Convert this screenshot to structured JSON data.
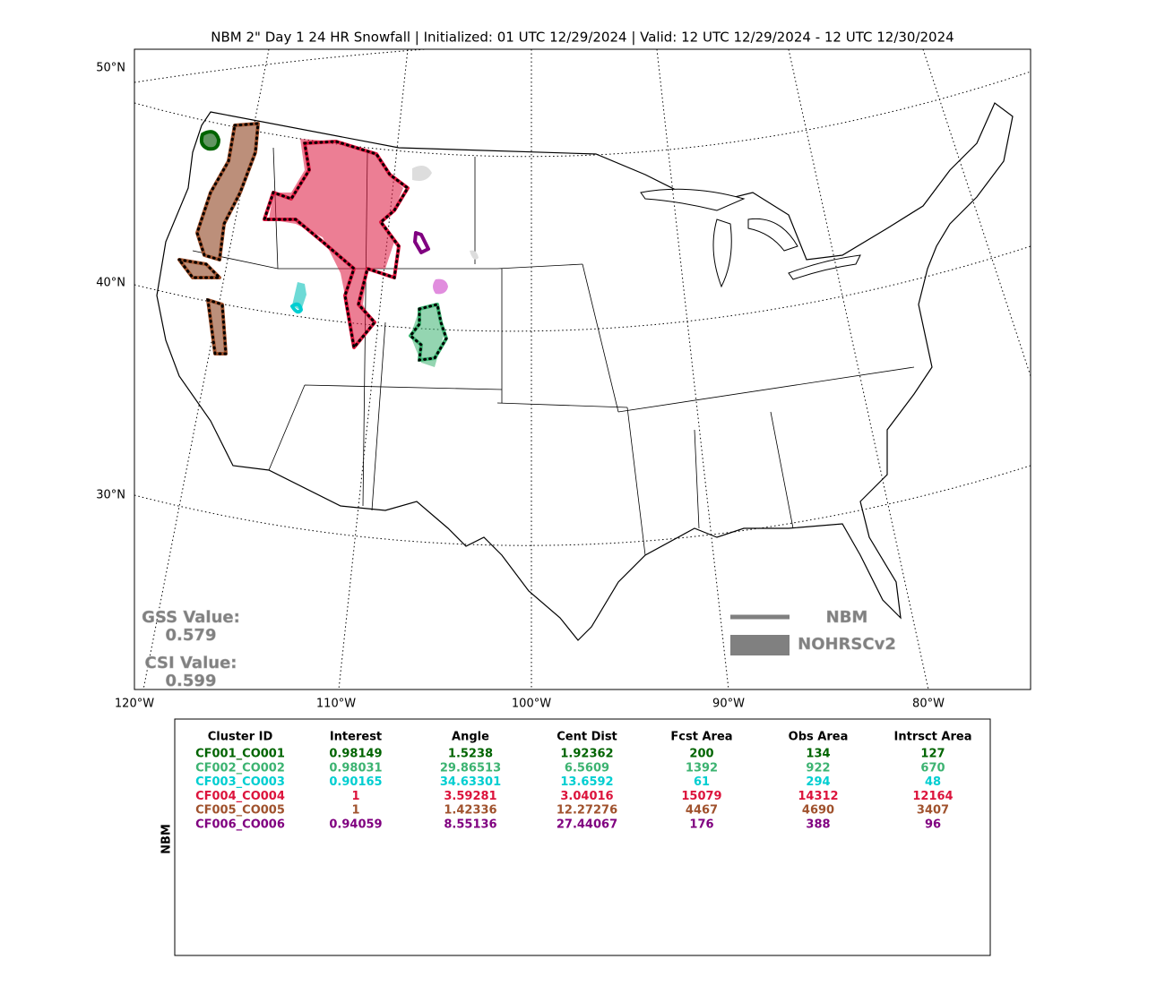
{
  "title": "NBM 2\" Day 1 24 HR Snowfall | Initialized: 01 UTC 12/29/2024 | Valid: 12 UTC 12/29/2024 - 12 UTC 12/30/2024",
  "map": {
    "lat_labels": [
      "50°N",
      "40°N",
      "30°N"
    ],
    "lon_labels": [
      "120°W",
      "110°W",
      "100°W",
      "90°W",
      "80°W"
    ]
  },
  "scores": {
    "gss_label": "GSS Value:",
    "gss": 0.579,
    "csi_label": "CSI Value:",
    "csi": 0.599
  },
  "legend": {
    "forecast": "NBM",
    "observed": "NOHRSCv2",
    "color": "#808080"
  },
  "table": {
    "side_label": "NBM",
    "columns": [
      "Cluster ID",
      "Interest",
      "Angle",
      "Cent Dist",
      "Fcst Area",
      "Obs Area",
      "Intrsct Area"
    ],
    "rows": [
      [
        "CF001_CO001",
        0.98149,
        1.5238,
        1.92362,
        200,
        134,
        127
      ],
      [
        "CF002_CO002",
        0.98031,
        29.86513,
        6.5609,
        1392,
        922,
        670
      ],
      [
        "CF003_CO003",
        0.90165,
        34.63301,
        13.6592,
        61,
        294,
        48
      ],
      [
        "CF004_CO004",
        1,
        3.59281,
        3.04016,
        15079,
        14312,
        12164
      ],
      [
        "CF005_CO005",
        1,
        1.42336,
        12.27276,
        4467,
        4690,
        3407
      ],
      [
        "CF006_CO006",
        0.94059,
        8.55136,
        27.44067,
        176,
        388,
        96
      ]
    ],
    "colors": [
      "#006400",
      "#3cb371",
      "#00ced1",
      "#dc143c",
      "#a0522d",
      "#800080"
    ]
  }
}
